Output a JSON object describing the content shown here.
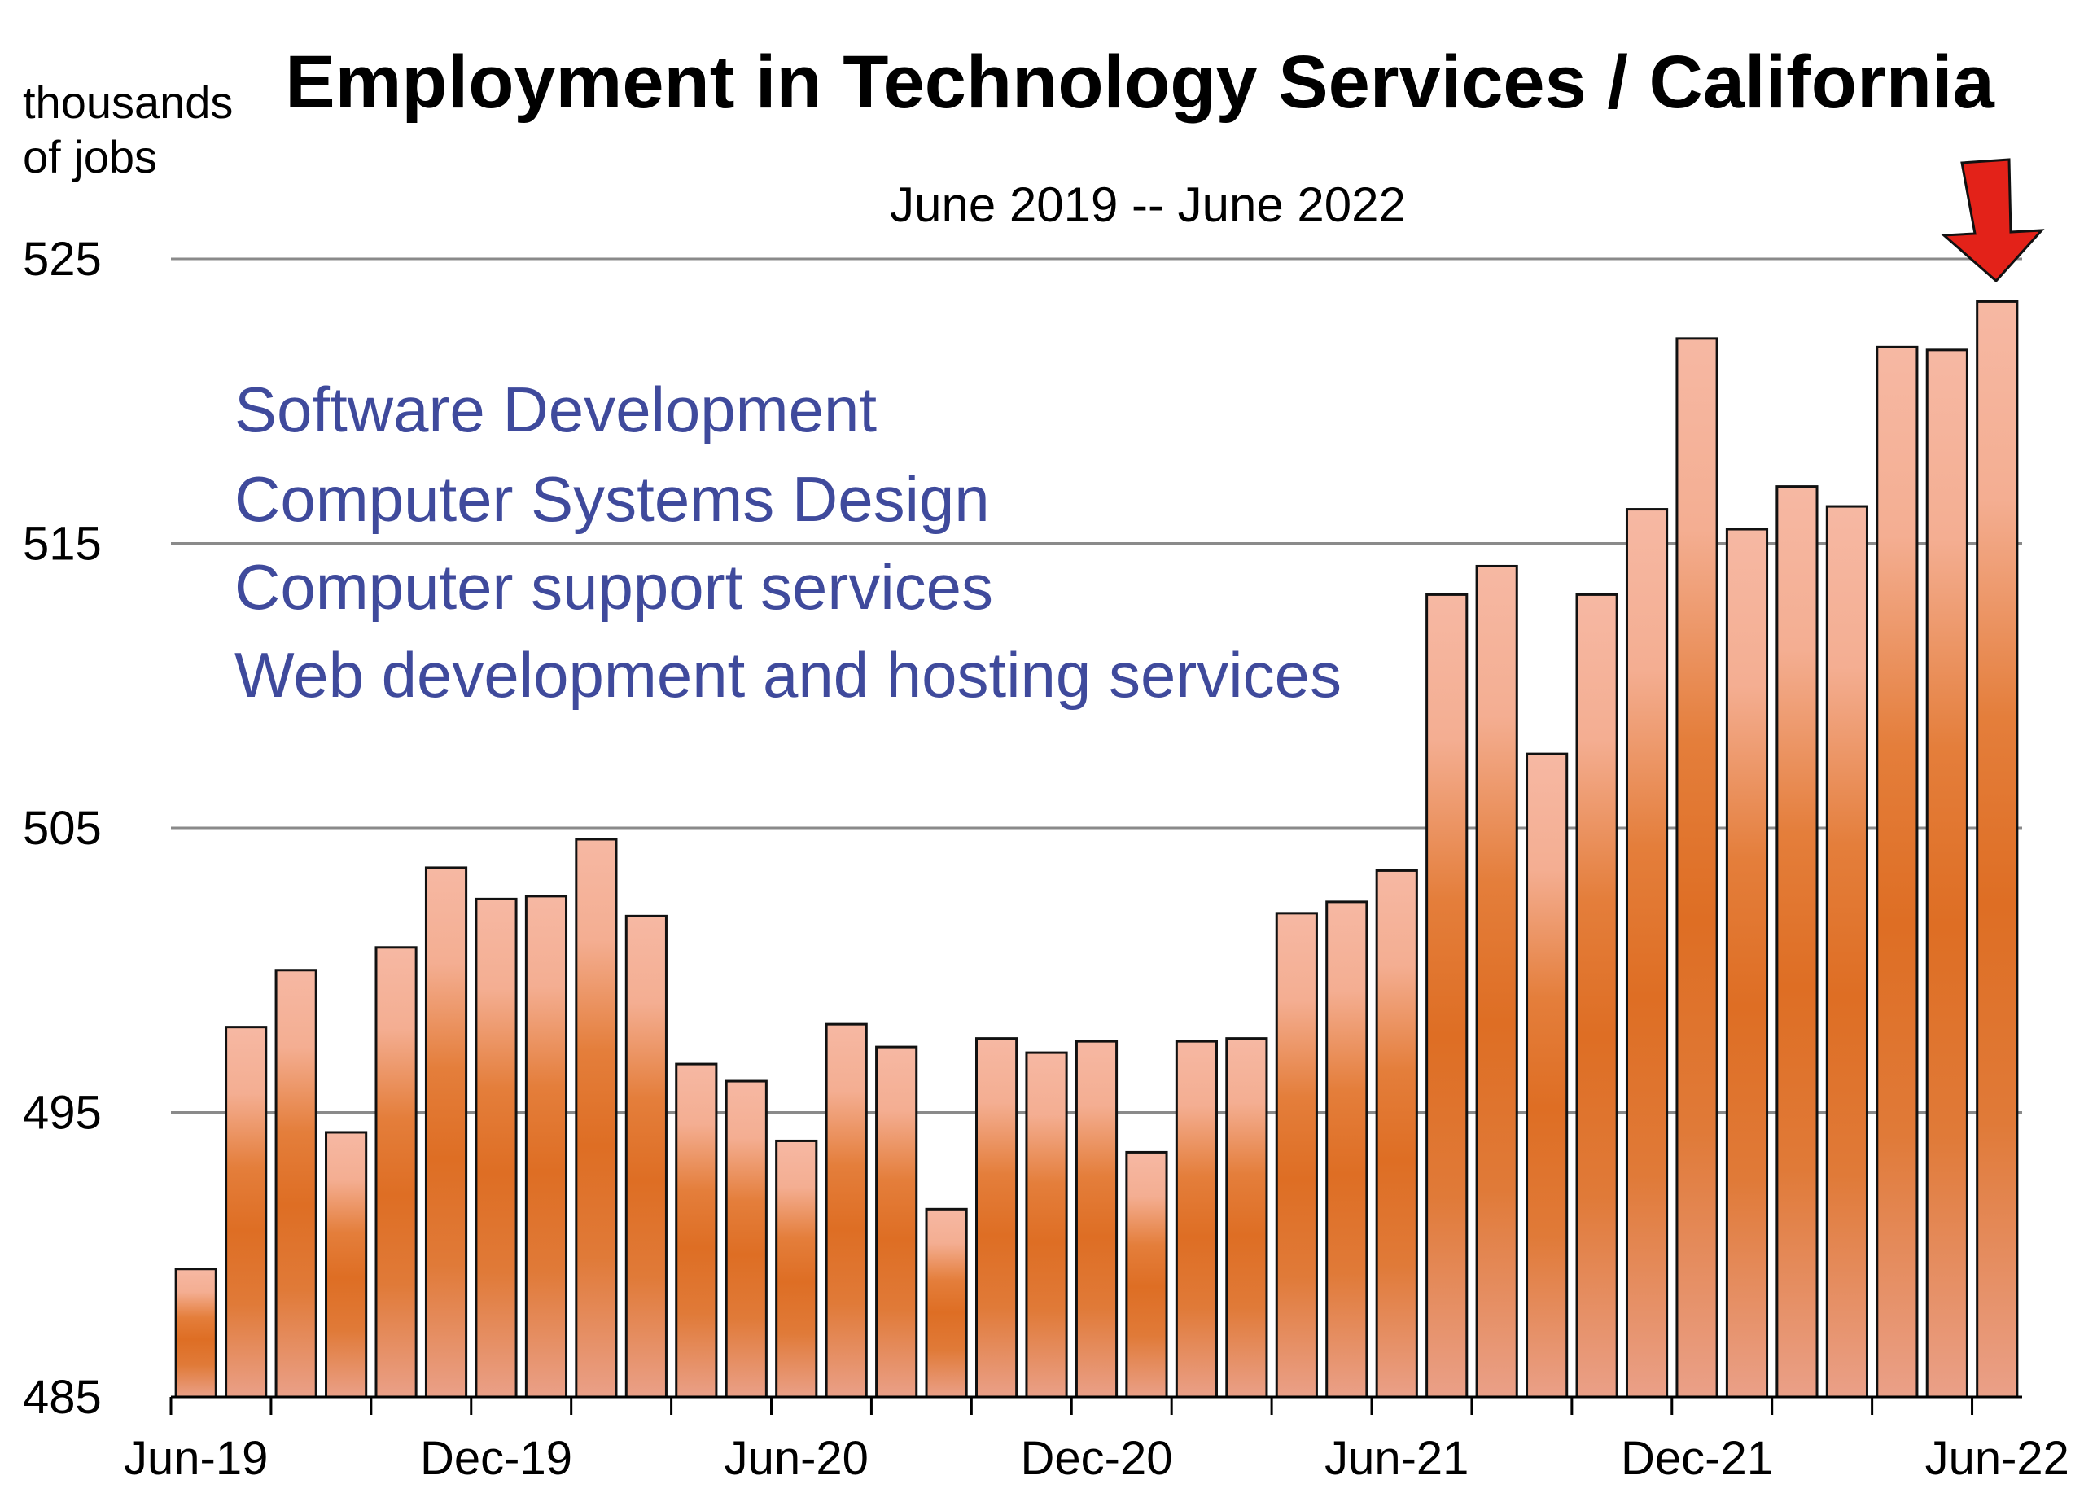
{
  "chart_data": {
    "type": "bar",
    "title": "Employment in Technology Services / California",
    "subtitle": "June 2019 -- June 2022",
    "ylabel_lines": [
      "thousands",
      "of jobs"
    ],
    "ylim": [
      485,
      525
    ],
    "yticks": [
      525,
      515,
      505,
      495,
      485
    ],
    "grid": true,
    "xtick_labels": [
      "Jun-19",
      "Dec-19",
      "Jun-20",
      "Dec-20",
      "Jun-21",
      "Dec-21",
      "Jun-22"
    ],
    "annotation_lines": [
      "Software Development",
      "Computer Systems Design",
      "Computer support services",
      "Web development and hosting services"
    ],
    "annotation_color": "#3f4a9c",
    "highlight": {
      "category": "Jun-22",
      "marker": "red-down-arrow",
      "color": "#e32219"
    },
    "bar_colors": {
      "light": "#f6b7a2",
      "dark": "#e07024",
      "edge": "#111111"
    },
    "categories": [
      "Jun-19",
      "Jul-19",
      "Aug-19",
      "Sep-19",
      "Oct-19",
      "Nov-19",
      "Dec-19",
      "Jan-20",
      "Feb-20",
      "Mar-20",
      "Apr-20",
      "May-20",
      "Jun-20",
      "Jul-20",
      "Aug-20",
      "Sep-20",
      "Oct-20",
      "Nov-20",
      "Dec-20",
      "Jan-21",
      "Feb-21",
      "Mar-21",
      "Apr-21",
      "May-21",
      "Jun-21",
      "Jul-21",
      "Aug-21",
      "Sep-21",
      "Oct-21",
      "Nov-21",
      "Dec-21",
      "Jan-22",
      "Feb-22",
      "Mar-22",
      "Apr-22",
      "May-22",
      "Jun-22"
    ],
    "values": [
      489.5,
      498.0,
      500.0,
      494.3,
      500.8,
      503.6,
      502.5,
      502.6,
      504.6,
      501.9,
      496.7,
      496.1,
      494.0,
      498.1,
      497.3,
      491.6,
      497.6,
      497.1,
      497.5,
      493.6,
      497.5,
      497.6,
      502.0,
      502.4,
      503.5,
      513.2,
      514.2,
      507.6,
      513.2,
      516.2,
      522.2,
      515.5,
      517.0,
      516.3,
      521.9,
      521.8,
      523.5
    ]
  }
}
